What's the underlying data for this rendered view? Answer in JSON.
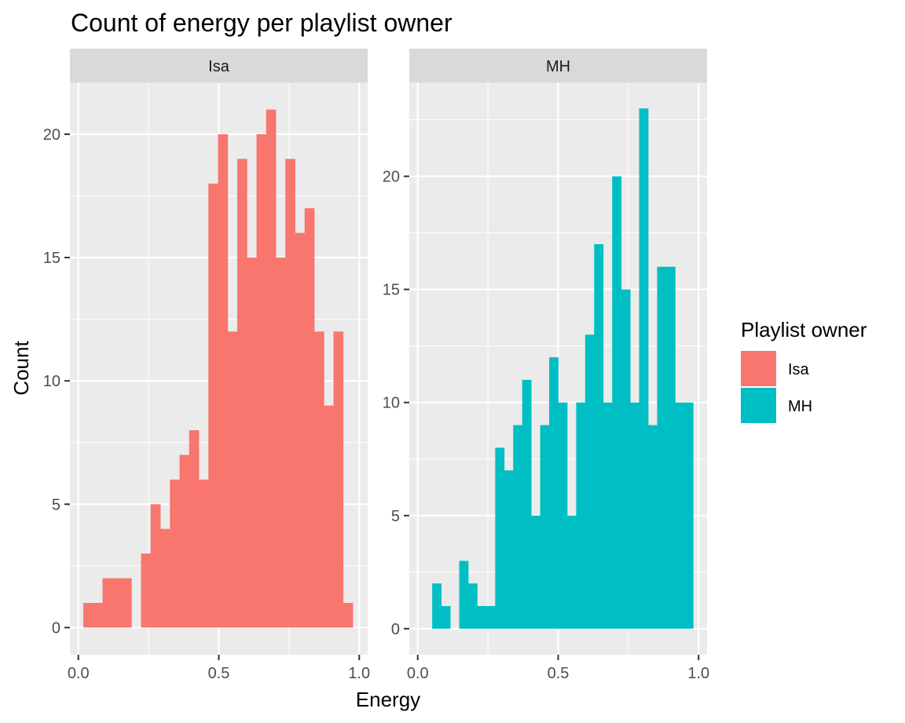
{
  "chart_data": {
    "type": "bar",
    "title": "Count of energy per playlist owner",
    "xlabel": "Energy",
    "ylabel": "Count",
    "legend": {
      "title": "Playlist owner",
      "position": "right",
      "entries": [
        {
          "label": "Isa",
          "color": "#F8766D"
        },
        {
          "label": "MH",
          "color": "#00BFC4"
        }
      ]
    },
    "grid": true,
    "facets": [
      {
        "name": "Isa",
        "color": "#F8766D",
        "xlim": [
          -0.03,
          1.03
        ],
        "ylim": [
          -1.1,
          22.1
        ],
        "x_ticks": [
          0.0,
          0.5,
          1.0
        ],
        "x_tick_labels": [
          "0.0",
          "0.5",
          "1.0"
        ],
        "y_ticks": [
          0,
          5,
          10,
          15,
          20
        ],
        "y_tick_labels": [
          "0",
          "5",
          "10",
          "15",
          "20"
        ],
        "bin_start": 0.0176,
        "bin_width": 0.03426,
        "counts": [
          1,
          1,
          2,
          2,
          2,
          0,
          3,
          5,
          4,
          6,
          7,
          8,
          6,
          18,
          20,
          12,
          19,
          15,
          20,
          21,
          15,
          19,
          16,
          17,
          12,
          9,
          12,
          1
        ]
      },
      {
        "name": "MH",
        "color": "#00BFC4",
        "xlim": [
          -0.03,
          1.03
        ],
        "ylim": [
          -1.15,
          24.15
        ],
        "x_ticks": [
          0.0,
          0.5,
          1.0
        ],
        "x_tick_labels": [
          "0.0",
          "0.5",
          "1.0"
        ],
        "y_ticks": [
          0,
          5,
          10,
          15,
          20
        ],
        "y_tick_labels": [
          "0",
          "5",
          "10",
          "15",
          "20"
        ],
        "bin_start": 0.0516,
        "bin_width": 0.03203,
        "counts": [
          2,
          1,
          0,
          3,
          2,
          1,
          1,
          8,
          7,
          9,
          11,
          5,
          9,
          12,
          10,
          5,
          10,
          13,
          17,
          10,
          20,
          15,
          10,
          23,
          9,
          16,
          16,
          10,
          10
        ]
      }
    ]
  }
}
